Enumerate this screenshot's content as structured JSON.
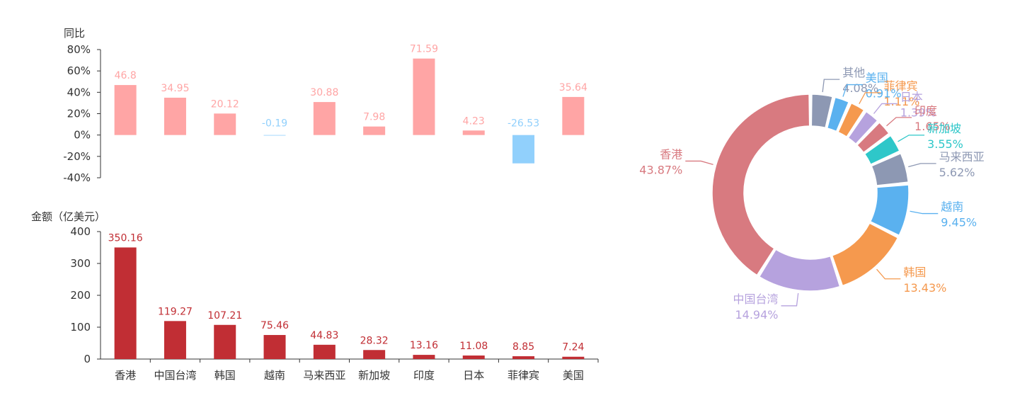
{
  "chart_data": [
    {
      "type": "bar",
      "ylabel": "同比",
      "ylim": [
        -40,
        80
      ],
      "yticks": [
        "80%",
        "60%",
        "40%",
        "20%",
        "0%",
        "-20%",
        "-40%"
      ],
      "categories": [
        "香港",
        "中国台湾",
        "韩国",
        "越南",
        "马来西亚",
        "新加坡",
        "印度",
        "日本",
        "菲律宾",
        "美国"
      ],
      "values": [
        46.8,
        34.95,
        20.12,
        -0.19,
        30.88,
        7.98,
        71.59,
        4.23,
        -26.53,
        35.64
      ],
      "data_labels": [
        "46.8",
        "34.95",
        "20.12",
        "-0.19",
        "30.88",
        "7.98",
        "71.59",
        "4.23",
        "-26.53",
        "35.64"
      ],
      "colors": {
        "positive": "#ffa5a5",
        "negative": "#91d0fc"
      }
    },
    {
      "type": "bar",
      "ylabel": "金额（亿美元）",
      "ylim": [
        0,
        400
      ],
      "yticks": [
        "400",
        "300",
        "200",
        "100",
        "0"
      ],
      "categories": [
        "香港",
        "中国台湾",
        "韩国",
        "越南",
        "马来西亚",
        "新加坡",
        "印度",
        "日本",
        "菲律宾",
        "美国"
      ],
      "values": [
        350.16,
        119.27,
        107.21,
        75.46,
        44.83,
        28.32,
        13.16,
        11.08,
        8.85,
        7.24
      ],
      "data_labels": [
        "350.16",
        "119.27",
        "107.21",
        "75.46",
        "44.83",
        "28.32",
        "13.16",
        "11.08",
        "8.85",
        "7.24"
      ],
      "colors": {
        "bar": "#c12e34"
      }
    },
    {
      "type": "pie",
      "donut": true,
      "slices": [
        {
          "name": "其他",
          "value": 4.08,
          "label": "4.08%",
          "color": "#8d98b3"
        },
        {
          "name": "美国",
          "value": 0.91,
          "label": "0.91%",
          "color": "#5ab1ef"
        },
        {
          "name": "菲律宾",
          "value": 1.11,
          "label": "1.11%",
          "color": "#f5994e"
        },
        {
          "name": "日本",
          "value": 1.39,
          "label": "1.39%",
          "color": "#b6a2de"
        },
        {
          "name": "印度",
          "value": 1.65,
          "label": "1.65%",
          "color": "#d87a80"
        },
        {
          "name": "新加坡",
          "value": 3.55,
          "label": "3.55%",
          "color": "#2ec7c9"
        },
        {
          "name": "马来西亚",
          "value": 5.62,
          "label": "5.62%",
          "color": "#8d98b3"
        },
        {
          "name": "越南",
          "value": 9.45,
          "label": "9.45%",
          "color": "#5ab1ef"
        },
        {
          "name": "韩国",
          "value": 13.43,
          "label": "13.43%",
          "color": "#f5994e"
        },
        {
          "name": "中国台湾",
          "value": 14.94,
          "label": "14.94%",
          "color": "#b6a2de"
        },
        {
          "name": "香港",
          "value": 43.87,
          "label": "43.87%",
          "color": "#d87a80"
        }
      ]
    }
  ]
}
